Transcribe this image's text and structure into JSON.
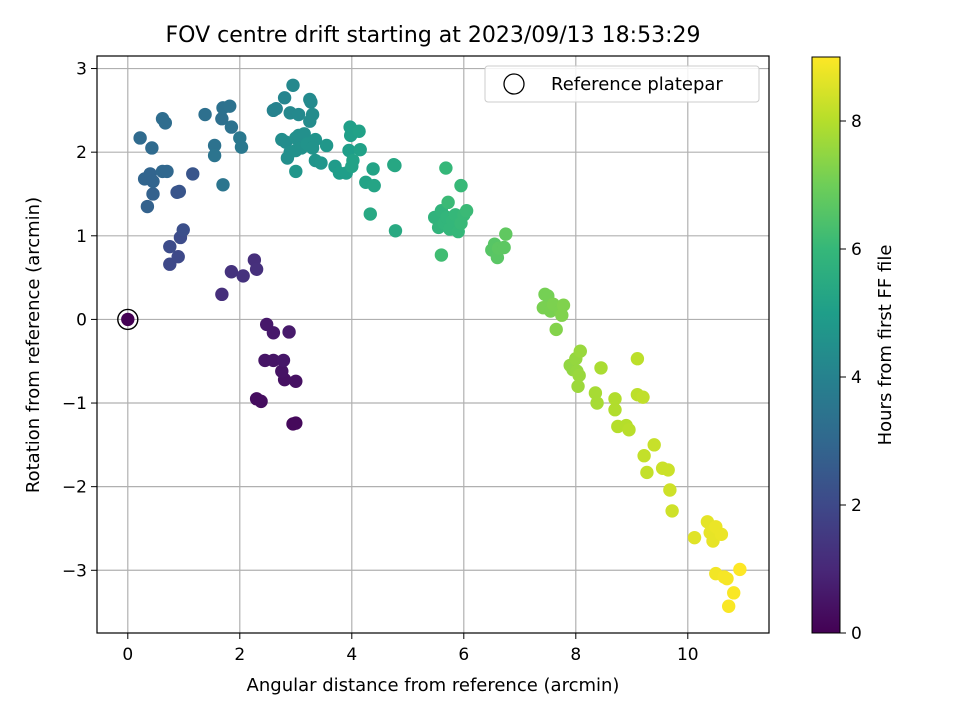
{
  "chart_data": {
    "type": "scatter",
    "title": "FOV centre drift starting at 2023/09/13 18:53:29",
    "xlabel": "Angular distance from reference (arcmin)",
    "ylabel": "Rotation from reference (arcmin)",
    "xlim": [
      -0.55,
      11.45
    ],
    "ylim": [
      -3.75,
      3.15
    ],
    "xticks": [
      0,
      2,
      4,
      6,
      8,
      10
    ],
    "yticks": [
      -3,
      -2,
      -1,
      0,
      1,
      2,
      3
    ],
    "grid": true,
    "legend": {
      "position": "upper-right",
      "entries": [
        "Reference platepar"
      ]
    },
    "reference_point": {
      "x": 0,
      "y": 0
    },
    "colorbar": {
      "label": "Hours from first FF file",
      "colormap": "viridis",
      "range": [
        0,
        9
      ],
      "ticks": [
        0,
        2,
        4,
        6,
        8
      ]
    },
    "points": [
      {
        "x": 0.0,
        "y": 0.0,
        "c": 0.0
      },
      {
        "x": 2.95,
        "y": -1.25,
        "c": 0.2
      },
      {
        "x": 3.0,
        "y": -1.24,
        "c": 0.2
      },
      {
        "x": 2.3,
        "y": -0.95,
        "c": 0.3
      },
      {
        "x": 2.38,
        "y": -0.98,
        "c": 0.3
      },
      {
        "x": 3.0,
        "y": -0.74,
        "c": 0.4
      },
      {
        "x": 2.8,
        "y": -0.72,
        "c": 0.4
      },
      {
        "x": 2.75,
        "y": -0.62,
        "c": 0.45
      },
      {
        "x": 2.45,
        "y": -0.49,
        "c": 0.5
      },
      {
        "x": 2.6,
        "y": -0.49,
        "c": 0.5
      },
      {
        "x": 2.78,
        "y": -0.49,
        "c": 0.55
      },
      {
        "x": 2.48,
        "y": -0.06,
        "c": 0.6
      },
      {
        "x": 2.6,
        "y": -0.16,
        "c": 0.6
      },
      {
        "x": 2.88,
        "y": -0.15,
        "c": 0.65
      },
      {
        "x": 1.68,
        "y": 0.3,
        "c": 1.2
      },
      {
        "x": 1.85,
        "y": 0.57,
        "c": 1.3
      },
      {
        "x": 2.06,
        "y": 0.52,
        "c": 1.3
      },
      {
        "x": 2.26,
        "y": 0.71,
        "c": 1.2
      },
      {
        "x": 2.3,
        "y": 0.6,
        "c": 1.25
      },
      {
        "x": 0.75,
        "y": 0.66,
        "c": 2.0
      },
      {
        "x": 0.9,
        "y": 0.75,
        "c": 2.0
      },
      {
        "x": 0.75,
        "y": 0.87,
        "c": 2.1
      },
      {
        "x": 0.94,
        "y": 0.98,
        "c": 2.1
      },
      {
        "x": 0.99,
        "y": 1.07,
        "c": 2.2
      },
      {
        "x": 0.92,
        "y": 1.53,
        "c": 2.4
      },
      {
        "x": 0.88,
        "y": 1.52,
        "c": 2.4
      },
      {
        "x": 1.16,
        "y": 1.74,
        "c": 2.4
      },
      {
        "x": 0.35,
        "y": 1.35,
        "c": 2.8
      },
      {
        "x": 0.45,
        "y": 1.5,
        "c": 2.8
      },
      {
        "x": 0.3,
        "y": 1.68,
        "c": 2.9
      },
      {
        "x": 0.4,
        "y": 1.74,
        "c": 2.9
      },
      {
        "x": 0.45,
        "y": 1.65,
        "c": 2.9
      },
      {
        "x": 0.62,
        "y": 1.77,
        "c": 3.0
      },
      {
        "x": 0.7,
        "y": 1.77,
        "c": 3.0
      },
      {
        "x": 0.22,
        "y": 2.17,
        "c": 3.1
      },
      {
        "x": 0.43,
        "y": 2.05,
        "c": 3.1
      },
      {
        "x": 0.62,
        "y": 2.4,
        "c": 3.2
      },
      {
        "x": 0.67,
        "y": 2.35,
        "c": 3.2
      },
      {
        "x": 1.38,
        "y": 2.45,
        "c": 3.3
      },
      {
        "x": 1.68,
        "y": 2.4,
        "c": 3.3
      },
      {
        "x": 1.7,
        "y": 2.53,
        "c": 3.35
      },
      {
        "x": 1.82,
        "y": 2.55,
        "c": 3.4
      },
      {
        "x": 1.85,
        "y": 2.3,
        "c": 3.4
      },
      {
        "x": 1.55,
        "y": 2.08,
        "c": 3.4
      },
      {
        "x": 1.55,
        "y": 1.96,
        "c": 3.45
      },
      {
        "x": 1.7,
        "y": 1.61,
        "c": 3.5
      },
      {
        "x": 2.0,
        "y": 2.17,
        "c": 3.6
      },
      {
        "x": 2.03,
        "y": 2.06,
        "c": 3.6
      },
      {
        "x": 2.6,
        "y": 2.5,
        "c": 4.0
      },
      {
        "x": 2.65,
        "y": 2.52,
        "c": 4.0
      },
      {
        "x": 2.8,
        "y": 2.65,
        "c": 4.1
      },
      {
        "x": 2.95,
        "y": 2.8,
        "c": 4.2
      },
      {
        "x": 2.9,
        "y": 2.47,
        "c": 4.2
      },
      {
        "x": 3.05,
        "y": 2.45,
        "c": 4.25
      },
      {
        "x": 3.25,
        "y": 2.63,
        "c": 4.3
      },
      {
        "x": 3.27,
        "y": 2.6,
        "c": 4.3
      },
      {
        "x": 3.3,
        "y": 2.45,
        "c": 4.35
      },
      {
        "x": 3.25,
        "y": 2.37,
        "c": 4.35
      },
      {
        "x": 2.75,
        "y": 2.15,
        "c": 4.4
      },
      {
        "x": 2.82,
        "y": 2.12,
        "c": 4.4
      },
      {
        "x": 2.9,
        "y": 2.0,
        "c": 4.45
      },
      {
        "x": 2.85,
        "y": 1.93,
        "c": 4.45
      },
      {
        "x": 3.0,
        "y": 2.17,
        "c": 4.5
      },
      {
        "x": 3.05,
        "y": 2.2,
        "c": 4.5
      },
      {
        "x": 3.15,
        "y": 2.22,
        "c": 4.5
      },
      {
        "x": 3.0,
        "y": 2.02,
        "c": 4.55
      },
      {
        "x": 3.1,
        "y": 2.05,
        "c": 4.55
      },
      {
        "x": 3.2,
        "y": 2.1,
        "c": 4.6
      },
      {
        "x": 3.35,
        "y": 2.15,
        "c": 4.6
      },
      {
        "x": 3.3,
        "y": 2.05,
        "c": 4.6
      },
      {
        "x": 3.35,
        "y": 1.9,
        "c": 4.65
      },
      {
        "x": 3.45,
        "y": 1.87,
        "c": 4.7
      },
      {
        "x": 3.0,
        "y": 1.77,
        "c": 4.7
      },
      {
        "x": 3.55,
        "y": 2.08,
        "c": 4.75
      },
      {
        "x": 3.7,
        "y": 1.83,
        "c": 4.9
      },
      {
        "x": 3.78,
        "y": 1.75,
        "c": 4.95
      },
      {
        "x": 3.9,
        "y": 1.75,
        "c": 5.0
      },
      {
        "x": 3.95,
        "y": 2.02,
        "c": 5.0
      },
      {
        "x": 3.97,
        "y": 2.3,
        "c": 5.05
      },
      {
        "x": 3.98,
        "y": 2.2,
        "c": 5.05
      },
      {
        "x": 4.13,
        "y": 2.25,
        "c": 5.1
      },
      {
        "x": 4.15,
        "y": 2.03,
        "c": 5.1
      },
      {
        "x": 4.02,
        "y": 1.9,
        "c": 5.15
      },
      {
        "x": 4.0,
        "y": 1.83,
        "c": 5.15
      },
      {
        "x": 4.25,
        "y": 1.64,
        "c": 5.2
      },
      {
        "x": 4.38,
        "y": 1.8,
        "c": 5.2
      },
      {
        "x": 4.4,
        "y": 1.6,
        "c": 5.25
      },
      {
        "x": 4.75,
        "y": 1.85,
        "c": 5.35
      },
      {
        "x": 4.77,
        "y": 1.84,
        "c": 5.35
      },
      {
        "x": 4.33,
        "y": 1.26,
        "c": 5.4
      },
      {
        "x": 4.78,
        "y": 1.06,
        "c": 5.45
      },
      {
        "x": 5.48,
        "y": 1.22,
        "c": 5.8
      },
      {
        "x": 5.55,
        "y": 1.1,
        "c": 5.85
      },
      {
        "x": 5.6,
        "y": 1.3,
        "c": 5.85
      },
      {
        "x": 5.65,
        "y": 1.15,
        "c": 5.9
      },
      {
        "x": 5.7,
        "y": 1.22,
        "c": 5.9
      },
      {
        "x": 5.75,
        "y": 1.08,
        "c": 5.95
      },
      {
        "x": 5.8,
        "y": 1.18,
        "c": 5.95
      },
      {
        "x": 5.85,
        "y": 1.25,
        "c": 6.0
      },
      {
        "x": 5.9,
        "y": 1.05,
        "c": 6.0
      },
      {
        "x": 5.95,
        "y": 1.15,
        "c": 6.05
      },
      {
        "x": 6.0,
        "y": 1.25,
        "c": 6.05
      },
      {
        "x": 5.72,
        "y": 1.4,
        "c": 6.1
      },
      {
        "x": 6.05,
        "y": 1.3,
        "c": 6.1
      },
      {
        "x": 5.68,
        "y": 1.81,
        "c": 6.0
      },
      {
        "x": 5.95,
        "y": 1.6,
        "c": 6.05
      },
      {
        "x": 5.6,
        "y": 0.77,
        "c": 6.2
      },
      {
        "x": 6.5,
        "y": 0.83,
        "c": 6.6
      },
      {
        "x": 6.55,
        "y": 0.9,
        "c": 6.6
      },
      {
        "x": 6.6,
        "y": 0.74,
        "c": 6.65
      },
      {
        "x": 6.62,
        "y": 0.85,
        "c": 6.7
      },
      {
        "x": 6.72,
        "y": 0.86,
        "c": 6.7
      },
      {
        "x": 6.75,
        "y": 1.02,
        "c": 6.75
      },
      {
        "x": 7.45,
        "y": 0.3,
        "c": 7.1
      },
      {
        "x": 7.5,
        "y": 0.28,
        "c": 7.1
      },
      {
        "x": 7.42,
        "y": 0.14,
        "c": 7.15
      },
      {
        "x": 7.55,
        "y": 0.1,
        "c": 7.15
      },
      {
        "x": 7.6,
        "y": 0.18,
        "c": 7.2
      },
      {
        "x": 7.72,
        "y": 0.1,
        "c": 7.2
      },
      {
        "x": 7.75,
        "y": 0.05,
        "c": 7.25
      },
      {
        "x": 7.78,
        "y": 0.17,
        "c": 7.25
      },
      {
        "x": 7.65,
        "y": -0.12,
        "c": 7.3
      },
      {
        "x": 7.9,
        "y": -0.55,
        "c": 7.5
      },
      {
        "x": 7.95,
        "y": -0.6,
        "c": 7.5
      },
      {
        "x": 8.0,
        "y": -0.47,
        "c": 7.55
      },
      {
        "x": 8.02,
        "y": -0.62,
        "c": 7.55
      },
      {
        "x": 8.08,
        "y": -0.38,
        "c": 7.6
      },
      {
        "x": 8.06,
        "y": -0.67,
        "c": 7.6
      },
      {
        "x": 8.04,
        "y": -0.8,
        "c": 7.65
      },
      {
        "x": 8.35,
        "y": -0.88,
        "c": 7.8
      },
      {
        "x": 8.38,
        "y": -1.0,
        "c": 7.8
      },
      {
        "x": 8.45,
        "y": -0.58,
        "c": 7.85
      },
      {
        "x": 8.7,
        "y": -0.95,
        "c": 7.95
      },
      {
        "x": 8.7,
        "y": -1.08,
        "c": 7.95
      },
      {
        "x": 8.75,
        "y": -1.28,
        "c": 8.0
      },
      {
        "x": 8.9,
        "y": -1.27,
        "c": 8.0
      },
      {
        "x": 8.95,
        "y": -1.32,
        "c": 8.05
      },
      {
        "x": 9.1,
        "y": -0.47,
        "c": 8.1
      },
      {
        "x": 9.1,
        "y": -0.9,
        "c": 8.1
      },
      {
        "x": 9.2,
        "y": -0.93,
        "c": 8.15
      },
      {
        "x": 9.22,
        "y": -1.63,
        "c": 8.2
      },
      {
        "x": 9.27,
        "y": -1.83,
        "c": 8.2
      },
      {
        "x": 9.4,
        "y": -1.5,
        "c": 8.25
      },
      {
        "x": 9.55,
        "y": -1.78,
        "c": 8.3
      },
      {
        "x": 9.65,
        "y": -1.8,
        "c": 8.3
      },
      {
        "x": 9.68,
        "y": -2.04,
        "c": 8.35
      },
      {
        "x": 9.72,
        "y": -2.29,
        "c": 8.35
      },
      {
        "x": 10.12,
        "y": -2.61,
        "c": 8.6
      },
      {
        "x": 10.35,
        "y": -2.42,
        "c": 8.65
      },
      {
        "x": 10.4,
        "y": -2.55,
        "c": 8.7
      },
      {
        "x": 10.45,
        "y": -2.65,
        "c": 8.7
      },
      {
        "x": 10.5,
        "y": -2.48,
        "c": 8.75
      },
      {
        "x": 10.6,
        "y": -2.57,
        "c": 8.75
      },
      {
        "x": 10.5,
        "y": -3.04,
        "c": 8.85
      },
      {
        "x": 10.65,
        "y": -3.08,
        "c": 8.9
      },
      {
        "x": 10.7,
        "y": -3.1,
        "c": 8.9
      },
      {
        "x": 10.82,
        "y": -3.27,
        "c": 8.95
      },
      {
        "x": 10.73,
        "y": -3.43,
        "c": 8.95
      },
      {
        "x": 10.93,
        "y": -2.99,
        "c": 9.0
      }
    ]
  }
}
